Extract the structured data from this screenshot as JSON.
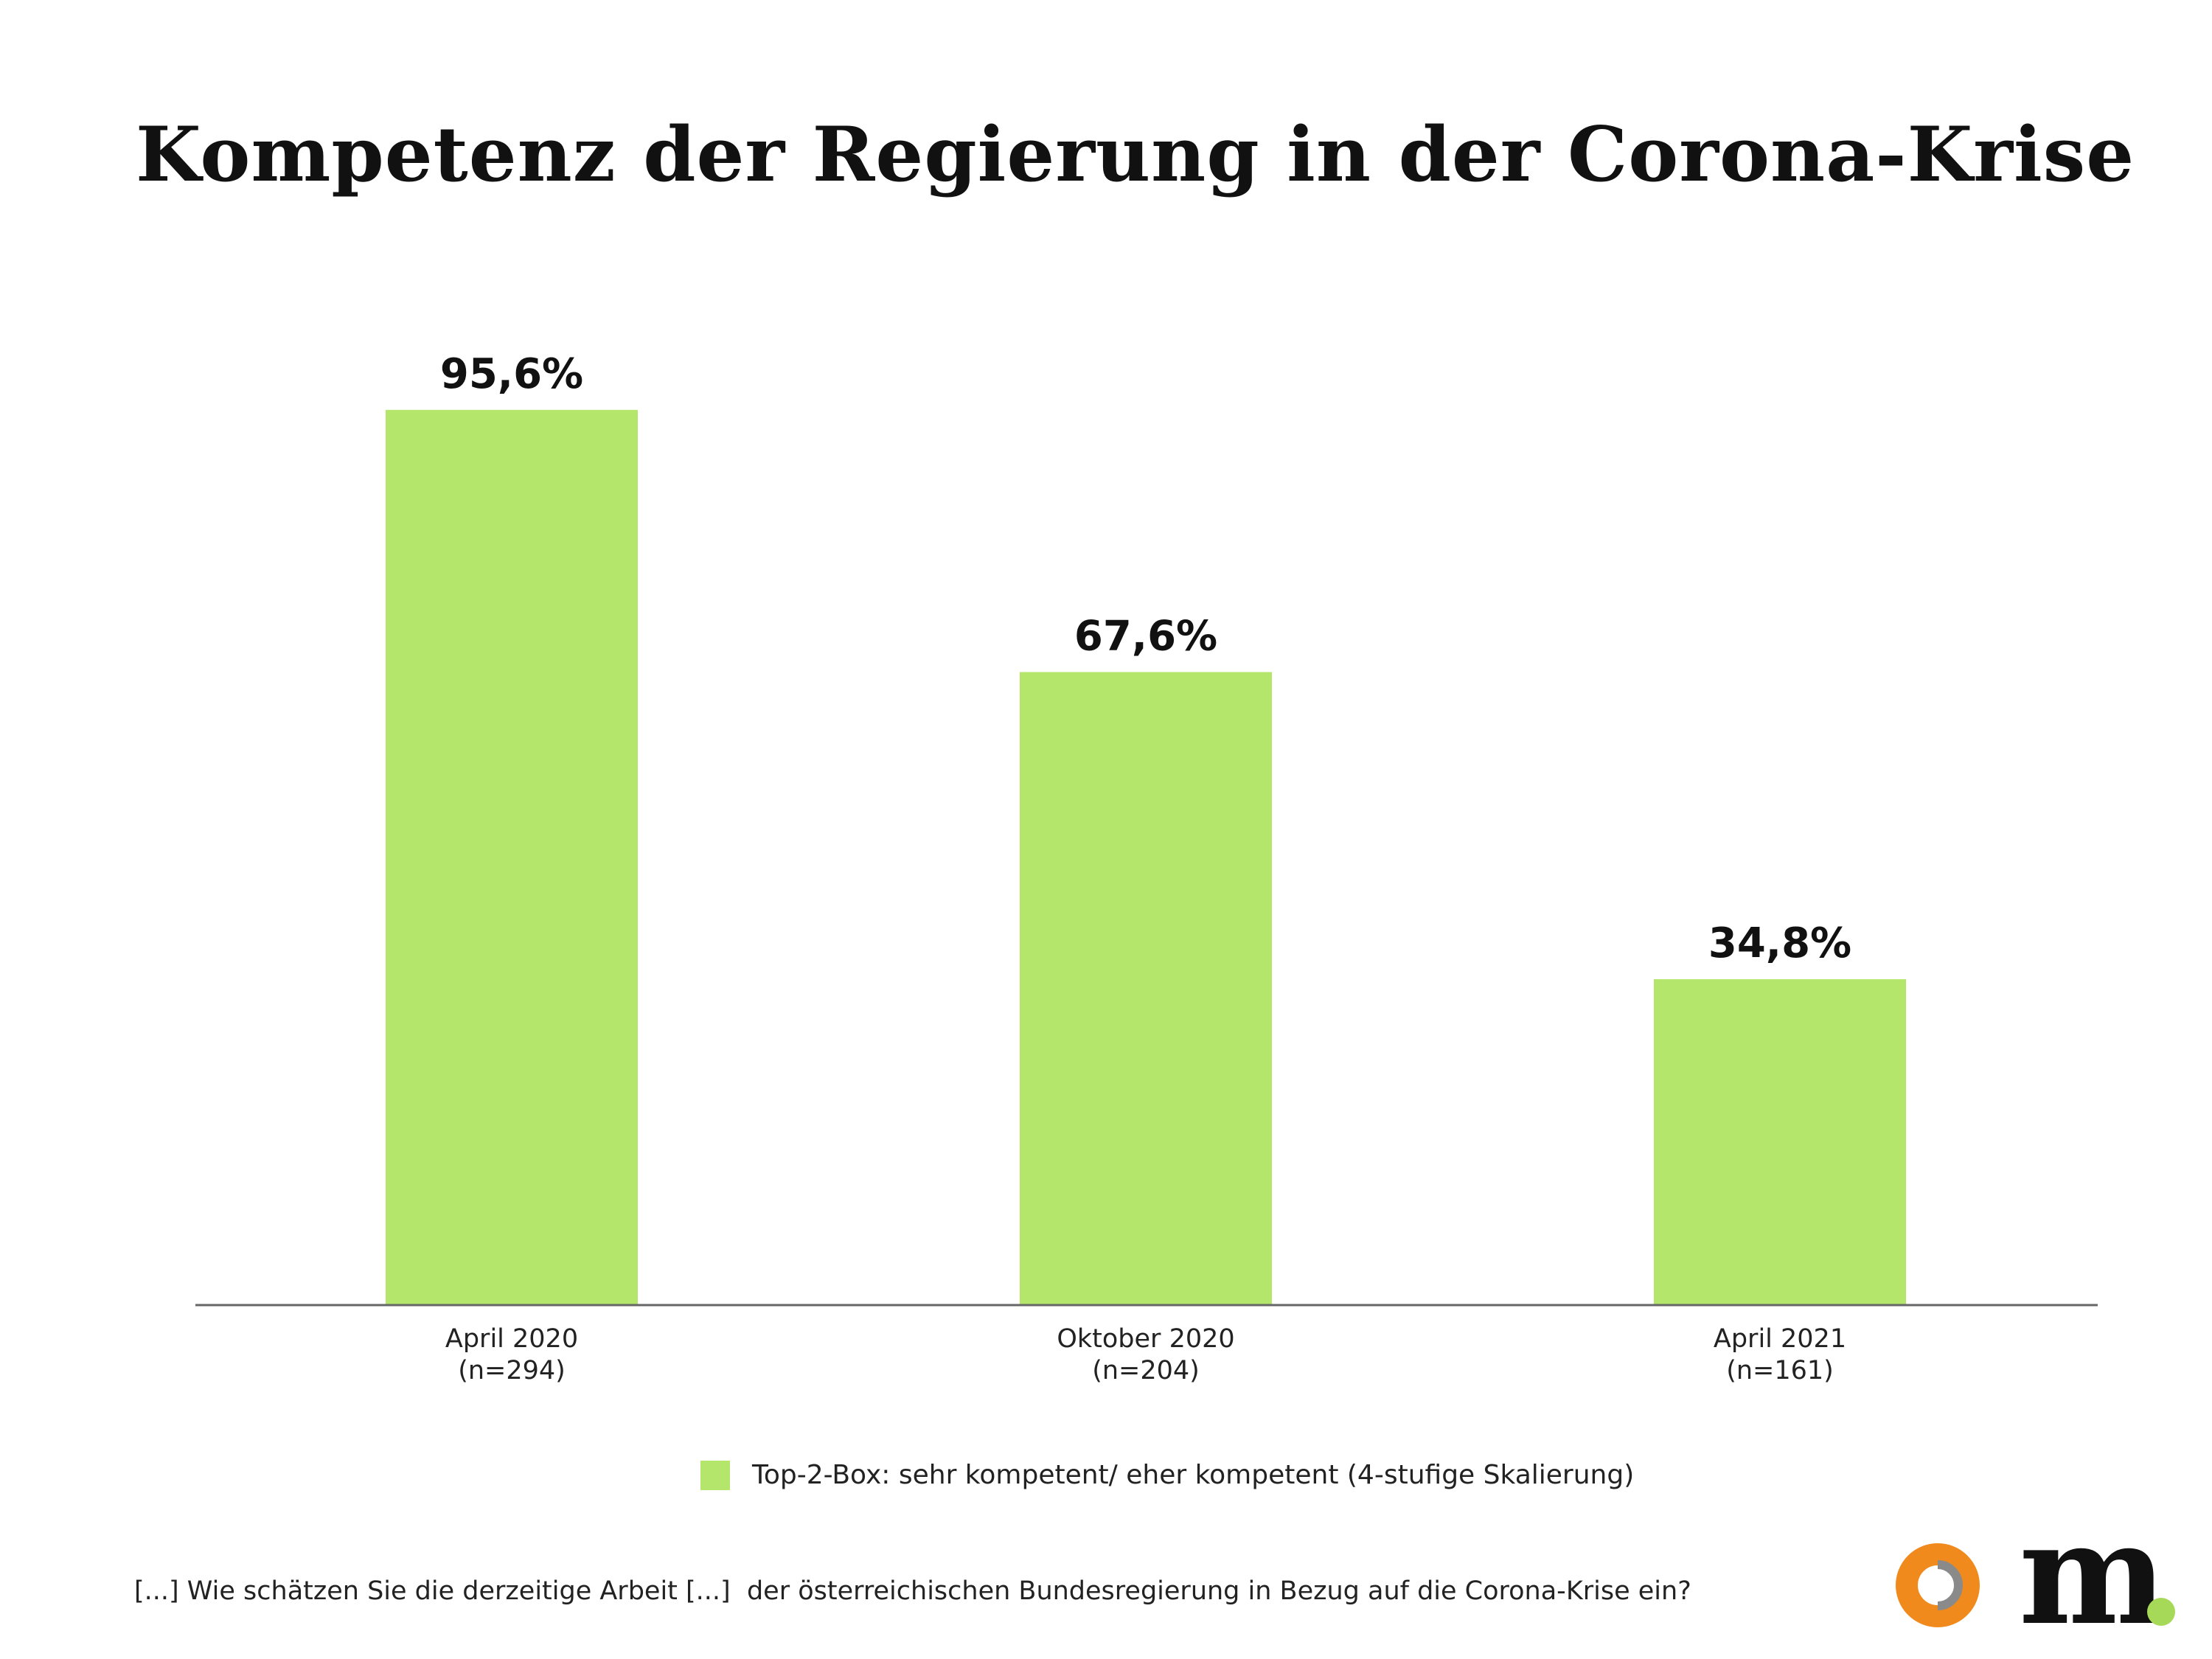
{
  "title": "Kompetenz der Regierung in der Corona-Krise",
  "chart_data": {
    "type": "bar",
    "categories": [
      "April 2020",
      "Oktober 2020",
      "April 2021"
    ],
    "sample_sizes": [
      "(n=294)",
      "(n=204)",
      "(n=161)"
    ],
    "values": [
      95.6,
      67.6,
      34.8
    ],
    "value_labels": [
      "95,6%",
      "67,6%",
      "34,8%"
    ],
    "series": [
      {
        "name": "Top-2-Box: sehr kompetent/ eher kompetent (4-stufige Skalierung)",
        "values": [
          95.6,
          67.6,
          34.8
        ]
      }
    ],
    "ylim": [
      0,
      100
    ],
    "grid": false,
    "legend": "bottom-center",
    "bar_color": "#b3e66a"
  },
  "legend": {
    "label": "Top-2-Box: sehr kompetent/ eher kompetent (4-stufige Skalierung)"
  },
  "footer": {
    "question": "[...] Wie schätzen Sie die derzeitige Arbeit [...]  der österreichischen Bundesregierung in Bezug auf die Corona-Krise ein?"
  },
  "logo": {
    "ring_icon": "ring-logo-icon",
    "letter": "m",
    "orange": "#f08a1c",
    "gray": "#8a8a8a",
    "green": "#a6d957"
  }
}
